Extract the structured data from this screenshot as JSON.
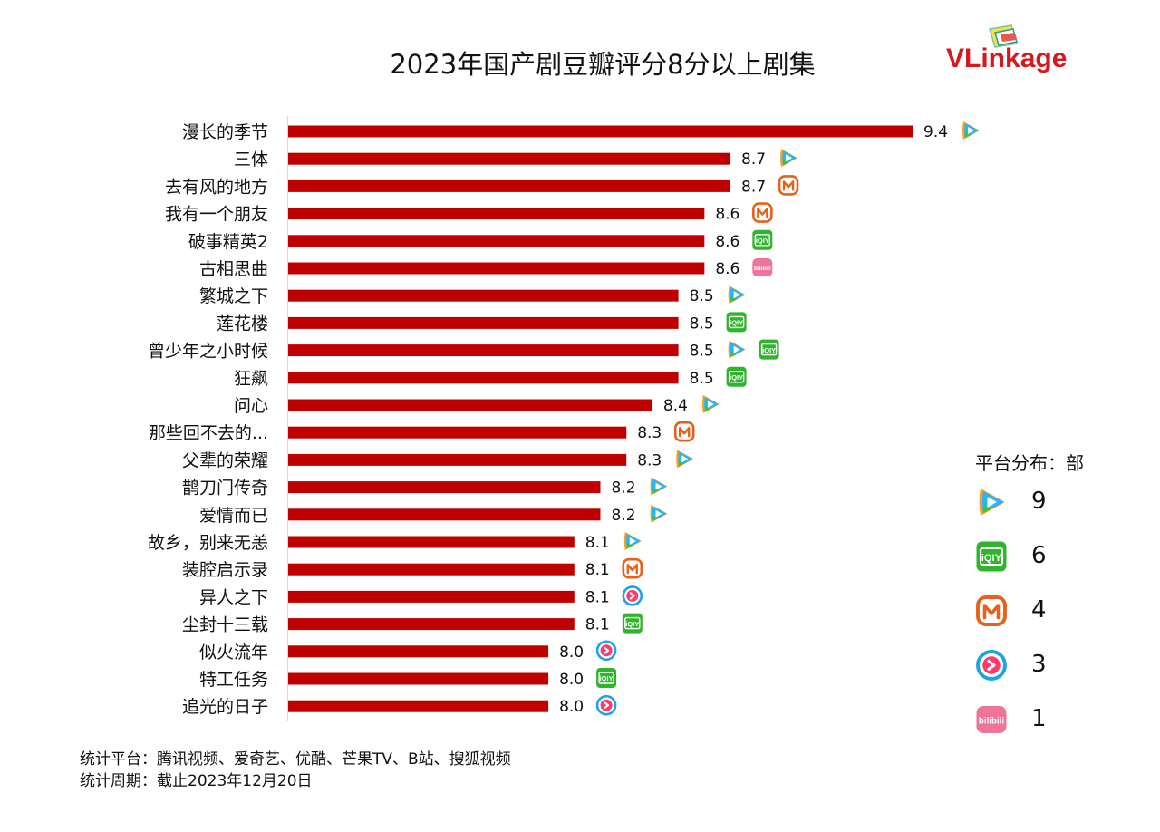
{
  "title": "2023年国产剧豆瓣评分8分以上剧集",
  "logo": {
    "prefix": "VLink",
    "suffix": "age"
  },
  "chart_data": {
    "type": "bar",
    "orientation": "horizontal",
    "title": "2023年国产剧豆瓣评分8分以上剧集",
    "xlabel": "",
    "ylabel": "",
    "xlim": [
      7.0,
      9.4
    ],
    "categories": [
      "漫长的季节",
      "三体",
      "去有风的地方",
      "我有一个朋友",
      "破事精英2",
      "古相思曲",
      "繁城之下",
      "莲花楼",
      "曾少年之小时候",
      "狂飙",
      "问心",
      "那些回不去的...",
      "父辈的荣耀",
      "鹊刀门传奇",
      "爱情而已",
      "故乡，别来无恙",
      "装腔启示录",
      "异人之下",
      "尘封十三载",
      "似火流年",
      "特工任务",
      "追光的日子"
    ],
    "values": [
      9.4,
      8.7,
      8.7,
      8.6,
      8.6,
      8.6,
      8.5,
      8.5,
      8.5,
      8.5,
      8.4,
      8.3,
      8.3,
      8.2,
      8.2,
      8.1,
      8.1,
      8.1,
      8.1,
      8.0,
      8.0,
      8.0
    ],
    "value_labels": [
      "9.4",
      "8.7",
      "8.7",
      "8.6",
      "8.6",
      "8.6",
      "8.5",
      "8.5",
      "8.5",
      "8.5",
      "8.4",
      "8.3",
      "8.3",
      "8.2",
      "8.2",
      "8.1",
      "8.1",
      "8.1",
      "8.1",
      "8.0",
      "8.0",
      "8.0"
    ],
    "platforms": [
      [
        "tencent"
      ],
      [
        "tencent"
      ],
      [
        "mango"
      ],
      [
        "mango"
      ],
      [
        "iqiyi"
      ],
      [
        "bilibili"
      ],
      [
        "tencent"
      ],
      [
        "iqiyi"
      ],
      [
        "tencent",
        "iqiyi"
      ],
      [
        "iqiyi"
      ],
      [
        "tencent"
      ],
      [
        "mango"
      ],
      [
        "tencent"
      ],
      [
        "tencent"
      ],
      [
        "tencent"
      ],
      [
        "tencent"
      ],
      [
        "mango"
      ],
      [
        "youku"
      ],
      [
        "iqiyi"
      ],
      [
        "youku"
      ],
      [
        "iqiyi"
      ],
      [
        "youku"
      ]
    ],
    "bar_color": "#c00000",
    "legend": {
      "title": "平台分布：部",
      "items": [
        {
          "platform": "tencent",
          "count": "9"
        },
        {
          "platform": "iqiyi",
          "count": "6"
        },
        {
          "platform": "mango",
          "count": "4"
        },
        {
          "platform": "youku",
          "count": "3"
        },
        {
          "platform": "bilibili",
          "count": "1"
        }
      ]
    }
  },
  "icons": {
    "tencent": "tencent-video-icon",
    "iqiyi": "iqiyi-icon",
    "mango": "mango-tv-icon",
    "youku": "youku-icon",
    "bilibili": "bilibili-icon"
  },
  "colors": {
    "bar": "#c00000",
    "brand": "#d6191e",
    "iqiyi": "#2fb52b",
    "mango": "#e8611a",
    "youku": "#1aa3e8",
    "bilibili": "#f0739a"
  },
  "icon_texts": {
    "iqiyi": "iQIY",
    "bilibili": "bilibili"
  },
  "footer": {
    "line1": "统计平台：腾讯视频、爱奇艺、优酷、芒果TV、B站、搜狐视频",
    "line2": "统计周期：截止2023年12月20日"
  }
}
